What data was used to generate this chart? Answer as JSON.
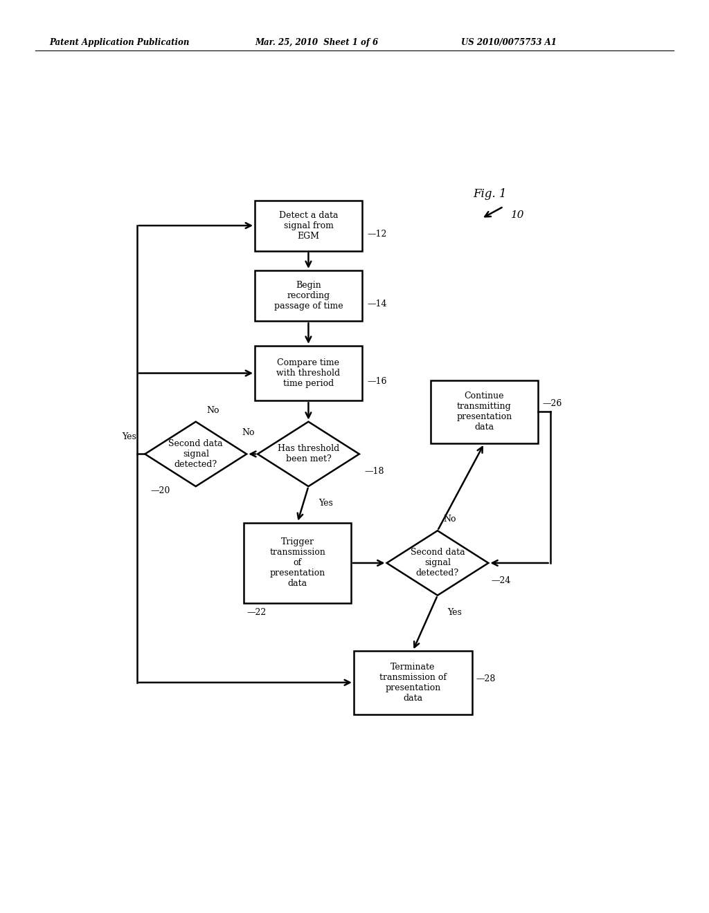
{
  "bg_color": "#ffffff",
  "header_left": "Patent Application Publication",
  "header_mid": "Mar. 25, 2010  Sheet 1 of 6",
  "header_right": "US 2010/0075753 A1",
  "fig_label": "Fig. 1",
  "fig_ref": "10"
}
